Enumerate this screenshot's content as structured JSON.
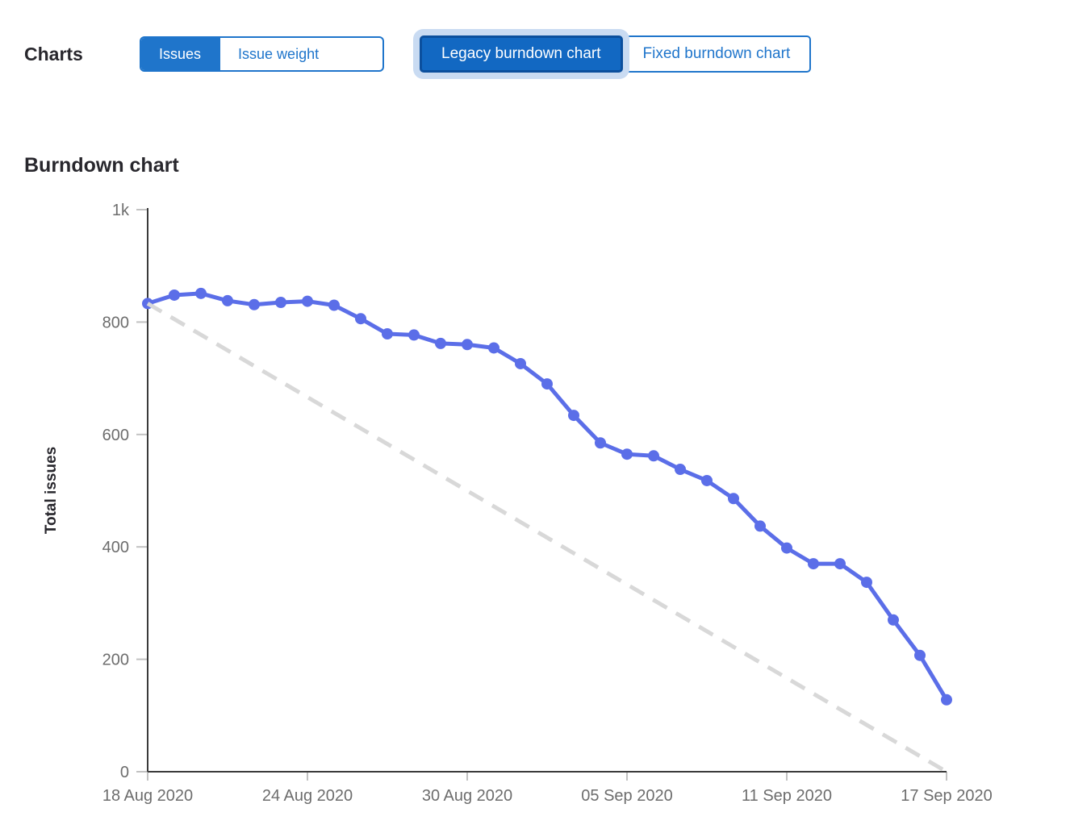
{
  "toolbar": {
    "charts_label": "Charts",
    "data_toggle": {
      "issues_label": "Issues",
      "issue_weight_label": "Issue weight",
      "selected": "Issues"
    },
    "chart_type_toggle": {
      "legacy_label": "Legacy burndown chart",
      "fixed_label": "Fixed burndown chart",
      "selected": "Legacy burndown chart"
    }
  },
  "heading": "Burndown chart",
  "colors": {
    "primary_blue": "#1f75cb",
    "selected_button_bg": "#1268c2",
    "selected_button_border": "#0b4f9d",
    "focus_halo": "#c9dbf2",
    "series_line": "#5b6ee8",
    "guideline": "#d8d8d8",
    "axis_line": "#3a3a3a",
    "tick_mark": "#c2c2c2",
    "axis_text": "#6d6d6d",
    "dark_text": "#28272d"
  },
  "chart_data": {
    "type": "line",
    "title": "Burndown chart",
    "xlabel": "",
    "ylabel": "Total issues",
    "ylim": [
      0,
      1000
    ],
    "grid": "off",
    "legend": "off",
    "y_ticks": [
      0,
      200,
      400,
      600,
      800,
      1000
    ],
    "y_tick_labels": [
      "0",
      "200",
      "400",
      "600",
      "800",
      "1k"
    ],
    "x_tick_labels": [
      "18 Aug 2020",
      "24 Aug 2020",
      "30 Aug 2020",
      "05 Sep 2020",
      "11 Sep 2020",
      "17 Sep 2020"
    ],
    "x_tick_day_index": [
      0,
      6,
      12,
      18,
      24,
      30
    ],
    "x_days_total": 30,
    "x_start_date": "18 Aug 2020",
    "x_end_date": "17 Sep 2020",
    "series": [
      {
        "name": "Total issues remaining",
        "style": "solid-with-points",
        "color": "#5b6ee8",
        "day_index": [
          0,
          1,
          2,
          3,
          4,
          5,
          6,
          7,
          8,
          9,
          10,
          11,
          12,
          13,
          14,
          15,
          16,
          17,
          18,
          19,
          20,
          21,
          22,
          23,
          24,
          25,
          26,
          27,
          28,
          29,
          30
        ],
        "values": [
          833,
          848,
          851,
          838,
          831,
          835,
          837,
          830,
          806,
          779,
          777,
          762,
          760,
          754,
          726,
          690,
          634,
          585,
          565,
          562,
          538,
          518,
          486,
          437,
          398,
          370,
          370,
          337,
          270,
          207,
          128
        ]
      },
      {
        "name": "Guideline",
        "style": "dashed",
        "color": "#d8d8d8",
        "day_index": [
          0,
          30
        ],
        "values": [
          833,
          0
        ]
      }
    ]
  }
}
